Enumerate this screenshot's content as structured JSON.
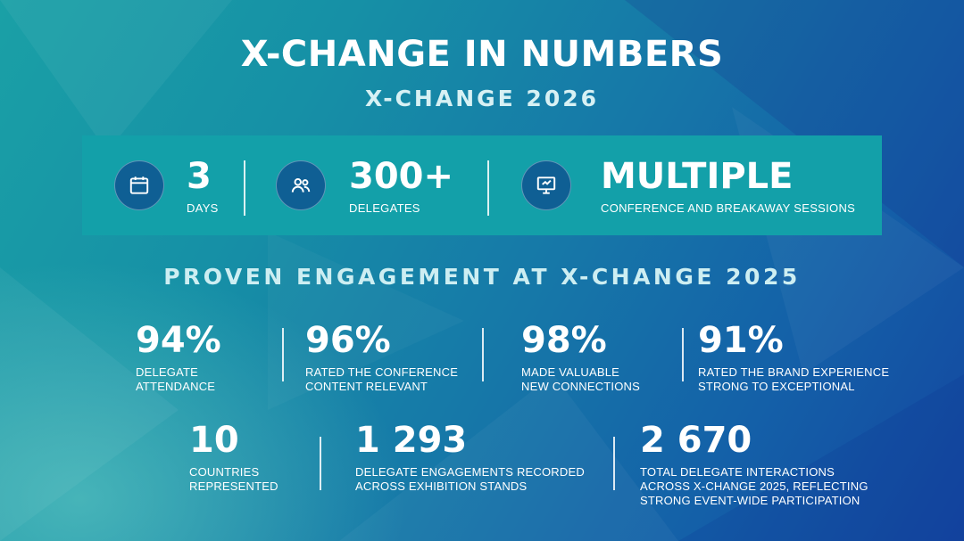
{
  "header": {
    "title": "X-CHANGE IN NUMBERS",
    "subtitle": "X-CHANGE 2026"
  },
  "highlights": [
    {
      "icon": "calendar-icon",
      "value": "3",
      "label": "DAYS"
    },
    {
      "icon": "people-icon",
      "value": "300+",
      "label": "DELEGATES"
    },
    {
      "icon": "presentation-icon",
      "value": "MULTIPLE",
      "label": "CONFERENCE AND BREAKAWAY SESSIONS"
    }
  ],
  "engagement": {
    "heading": "PROVEN ENGAGEMENT AT X-CHANGE 2025",
    "row1": [
      {
        "value": "94%",
        "label": [
          "DELEGATE",
          "ATTENDANCE"
        ]
      },
      {
        "value": "96%",
        "label": [
          "RATED THE CONFERENCE",
          "CONTENT RELEVANT"
        ]
      },
      {
        "value": "98%",
        "label": [
          "MADE VALUABLE",
          "NEW CONNECTIONS"
        ]
      },
      {
        "value": "91%",
        "label": [
          "RATED THE BRAND EXPERIENCE",
          "STRONG TO EXCEPTIONAL"
        ]
      }
    ],
    "row2": [
      {
        "value": "10",
        "label": [
          "COUNTRIES",
          "REPRESENTED"
        ]
      },
      {
        "value": "1 293",
        "label": [
          "DELEGATE ENGAGEMENTS RECORDED",
          "ACROSS EXHIBITION STANDS"
        ]
      },
      {
        "value": "2 670",
        "label": [
          "TOTAL DELEGATE INTERACTIONS",
          "ACROSS X-CHANGE 2025, REFLECTING",
          "STRONG EVENT-WIDE PARTICIPATION"
        ]
      }
    ]
  },
  "colors": {
    "band": "#13a0a9",
    "icon_circle": "#0f5f94",
    "background_start": "#1aa0a6",
    "background_end": "#1446a0"
  }
}
